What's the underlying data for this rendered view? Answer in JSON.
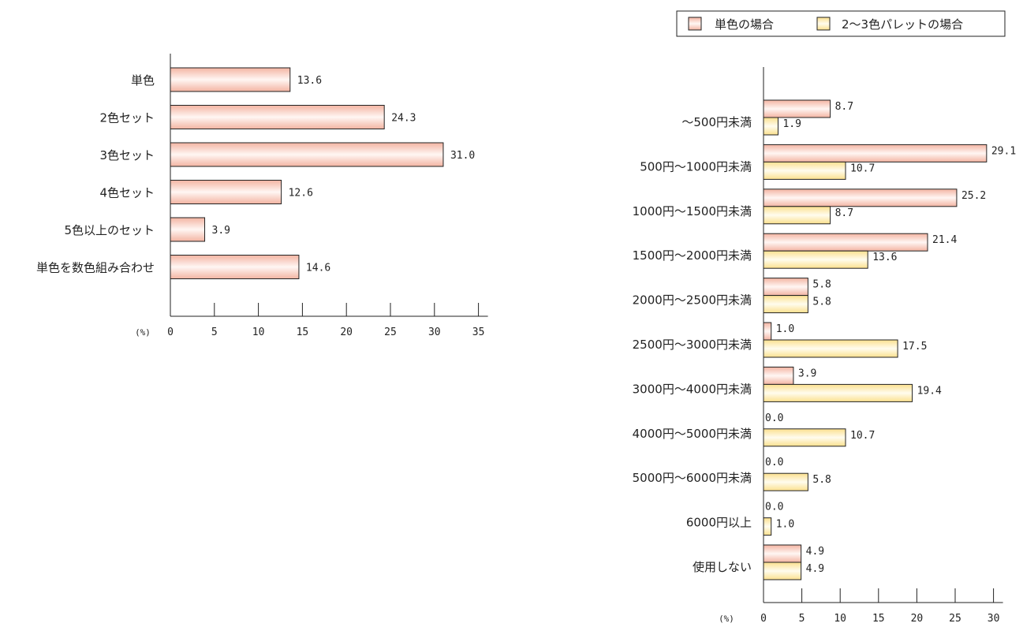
{
  "chart_data": [
    {
      "type": "bar",
      "orientation": "horizontal",
      "categories": [
        "単色",
        "2色セット",
        "3色セット",
        "4色セット",
        "5色以上のセット",
        "単色を数色組み合わせ"
      ],
      "series": [
        {
          "values": [
            13.6,
            24.3,
            31.0,
            12.6,
            3.9,
            14.6
          ],
          "color": "#f6c2b2"
        }
      ],
      "value_labels": [
        "13.6",
        "24.3",
        "31.0",
        "12.6",
        "3.9",
        "14.6"
      ],
      "xlim": [
        0,
        35
      ],
      "xticks": [
        0,
        5,
        10,
        15,
        20,
        25,
        30,
        35
      ],
      "tick_labels": [
        "0",
        "5",
        "10",
        "15",
        "20",
        "25",
        "30",
        "35"
      ],
      "unit_label": "(%)",
      "grid": false
    },
    {
      "type": "bar",
      "orientation": "horizontal",
      "categories": [
        "～500円未満",
        "500円～1000円未満",
        "1000円～1500円未満",
        "1500円～2000円未満",
        "2000円～2500円未満",
        "2500円～3000円未満",
        "3000円～4000円未満",
        "4000円～5000円未満",
        "5000円～6000円未満",
        "6000円以上",
        "使用しない"
      ],
      "series": [
        {
          "name": "単色の場合",
          "values": [
            8.7,
            29.1,
            25.2,
            21.4,
            5.8,
            1.0,
            3.9,
            0.0,
            0.0,
            0.0,
            4.9
          ],
          "color": "#f6c2b2",
          "value_labels": [
            "8.7",
            "29.1",
            "25.2",
            "21.4",
            "5.8",
            "1.0",
            "3.9",
            "0.0",
            "0.0",
            "0.0",
            "4.9"
          ]
        },
        {
          "name": "2～3色パレットの場合",
          "values": [
            1.9,
            10.7,
            8.7,
            13.6,
            5.8,
            17.5,
            19.4,
            10.7,
            5.8,
            1.0,
            4.9
          ],
          "color": "#fde7a6",
          "value_labels": [
            "1.9",
            "10.7",
            "8.7",
            "13.6",
            "5.8",
            "17.5",
            "19.4",
            "10.7",
            "5.8",
            "1.0",
            "4.9"
          ]
        }
      ],
      "xlim": [
        0,
        30
      ],
      "xticks": [
        0,
        5,
        10,
        15,
        20,
        25,
        30
      ],
      "tick_labels": [
        "0",
        "5",
        "10",
        "15",
        "20",
        "25",
        "30"
      ],
      "unit_label": "(%)",
      "legend": "top-right",
      "grid": false
    }
  ]
}
